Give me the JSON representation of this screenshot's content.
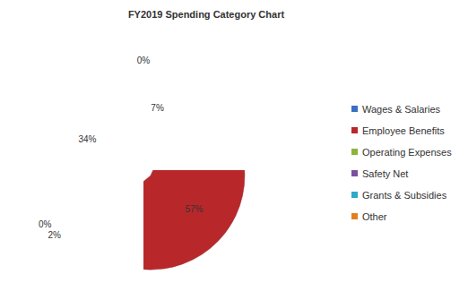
{
  "chart_data": {
    "type": "pie",
    "title": "FY2019 Spending Category Chart",
    "categories": [
      "Wages & Salaries",
      "Employee Benefits",
      "Operating Expenses",
      "Safety Net",
      "Grants & Subsidies",
      "Other"
    ],
    "values": [
      7,
      57,
      2,
      0,
      34,
      0
    ],
    "value_labels": [
      "7%",
      "57%",
      "2%",
      "0%",
      "34%",
      "0%"
    ],
    "colors": [
      "#3a6fc4",
      "#b8282b",
      "#8db43c",
      "#7b4fa0",
      "#2ea9c6",
      "#e3801e"
    ],
    "data_labels": true,
    "legend": "right"
  }
}
